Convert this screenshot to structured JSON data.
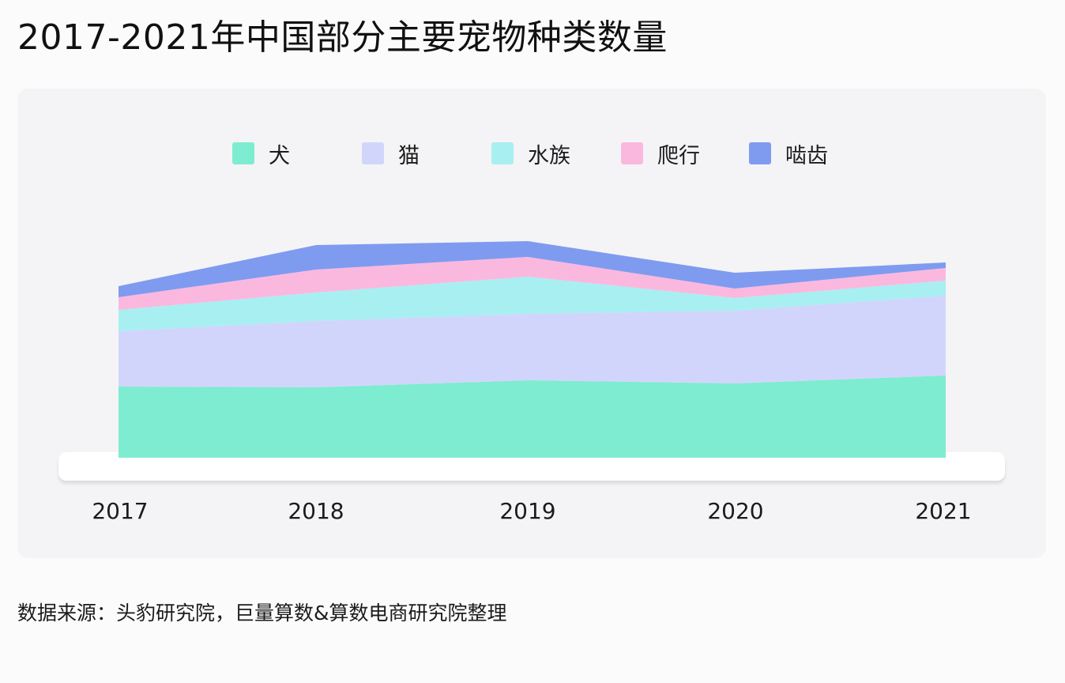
{
  "title": "2017-2021年中国部分主要宠物种类数量",
  "source": "数据来源：头豹研究院，巨量算数&算数电商研究院整理",
  "chart_data": {
    "type": "area",
    "stacked": true,
    "title": "2017-2021年中国部分主要宠物种类数量",
    "categories": [
      "2017",
      "2018",
      "2019",
      "2020",
      "2021"
    ],
    "legend_position": "top-center",
    "grid": false,
    "ylim": [
      0,
      290
    ],
    "series": [
      {
        "name": "犬",
        "color": "#7eecd0",
        "values": [
          90,
          89,
          98,
          94,
          104
        ]
      },
      {
        "name": "猫",
        "color": "#d2d5fb",
        "values": [
          70,
          84,
          84,
          92,
          101
        ]
      },
      {
        "name": "水族",
        "color": "#a8eff2",
        "values": [
          27,
          36,
          47,
          16,
          19
        ]
      },
      {
        "name": "爬行",
        "color": "#fbb8df",
        "values": [
          16,
          29,
          25,
          12,
          16
        ]
      },
      {
        "name": "啮齿",
        "color": "#7f9bf0",
        "values": [
          14,
          31,
          20,
          20,
          7
        ]
      }
    ]
  }
}
